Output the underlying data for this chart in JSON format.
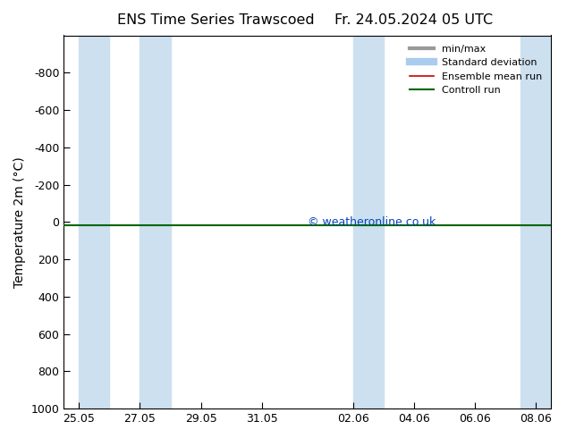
{
  "title_left": "ENS Time Series Trawscoed",
  "title_right": "Fr. 24.05.2024 05 UTC",
  "ylabel": "Temperature 2m (°C)",
  "ylim": [
    1000,
    -1000
  ],
  "yticks": [
    -800,
    -600,
    -400,
    -200,
    0,
    200,
    400,
    600,
    800,
    1000
  ],
  "ytick_labels": [
    "-800",
    "-600",
    "-400",
    "-200",
    "0",
    "200",
    "400",
    "600",
    "800",
    "1000"
  ],
  "xtick_labels": [
    "25.05",
    "27.05",
    "29.05",
    "31.05",
    "02.06",
    "04.06",
    "06.06",
    "08.06"
  ],
  "xtick_positions": [
    0,
    2,
    4,
    6,
    9,
    11,
    13,
    15
  ],
  "xlim": [
    -0.5,
    15.5
  ],
  "background_color": "#ffffff",
  "plot_bg_color": "#ffffff",
  "shaded_ranges": [
    [
      0,
      1
    ],
    [
      2,
      3
    ],
    [
      9,
      10
    ],
    [
      14.5,
      15.5
    ]
  ],
  "shaded_color": "#cce0f0",
  "watermark": "© weatheronline.co.uk",
  "watermark_color": "#0044bb",
  "green_line_y": 20,
  "legend_items": [
    {
      "label": "min/max",
      "color": "#999999",
      "lw": 3,
      "style": "solid"
    },
    {
      "label": "Standard deviation",
      "color": "#aaccee",
      "lw": 6,
      "style": "solid"
    },
    {
      "label": "Ensemble mean run",
      "color": "#cc0000",
      "lw": 1.2,
      "style": "solid"
    },
    {
      "label": "Controll run",
      "color": "#006600",
      "lw": 1.5,
      "style": "solid"
    }
  ]
}
